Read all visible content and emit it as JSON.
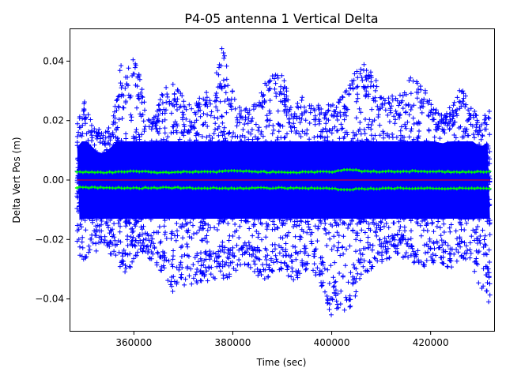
{
  "chart_data": {
    "type": "scatter",
    "title": "P4-05 antenna 1 Vertical Delta",
    "xlabel": "Time (sec)",
    "ylabel": "Delta Vert Pos (m)",
    "xlim": [
      347000,
      433000
    ],
    "ylim": [
      -0.051,
      0.051
    ],
    "x_ticks": [
      360000,
      380000,
      400000,
      420000
    ],
    "x_tick_labels": [
      "360000",
      "380000",
      "400000",
      "420000"
    ],
    "y_ticks": [
      -0.04,
      -0.02,
      0.0,
      0.02,
      0.04
    ],
    "y_tick_labels": [
      "−0.04",
      "−0.02",
      "0.00",
      "0.02",
      "0.04"
    ],
    "grid": false,
    "data_range": [
      348500,
      432000
    ],
    "colors": {
      "points": "#0000ff",
      "sigma_band": "#00ff00",
      "mean_line": "#ff0000"
    },
    "series": [
      {
        "marker": "plus",
        "color": "#0000ff",
        "envelope": {
          "x": [
            348500,
            350000,
            352000,
            354000,
            356000,
            357500,
            358500,
            360000,
            361000,
            362000,
            364000,
            366000,
            368000,
            370000,
            372000,
            374000,
            376000,
            378000,
            380000,
            382000,
            384000,
            386000,
            388000,
            390000,
            392000,
            394000,
            396000,
            398000,
            400000,
            402000,
            404000,
            406000,
            408000,
            410000,
            412000,
            414000,
            416000,
            418000,
            420000,
            422000,
            424000,
            426000,
            428000,
            430000,
            432000
          ],
          "upper": [
            0.02,
            0.028,
            0.018,
            0.016,
            0.022,
            0.043,
            0.036,
            0.042,
            0.038,
            0.028,
            0.022,
            0.032,
            0.034,
            0.028,
            0.024,
            0.03,
            0.032,
            0.046,
            0.03,
            0.024,
            0.026,
            0.032,
            0.038,
            0.036,
            0.024,
            0.028,
            0.026,
            0.026,
            0.026,
            0.028,
            0.034,
            0.04,
            0.04,
            0.028,
            0.028,
            0.03,
            0.035,
            0.034,
            0.026,
            0.022,
            0.024,
            0.032,
            0.026,
            0.02,
            0.024
          ],
          "lower": [
            -0.026,
            -0.028,
            -0.024,
            -0.024,
            -0.026,
            -0.03,
            -0.032,
            -0.028,
            -0.026,
            -0.024,
            -0.028,
            -0.034,
            -0.038,
            -0.036,
            -0.036,
            -0.034,
            -0.034,
            -0.034,
            -0.032,
            -0.028,
            -0.03,
            -0.034,
            -0.032,
            -0.03,
            -0.034,
            -0.032,
            -0.03,
            -0.036,
            -0.046,
            -0.044,
            -0.044,
            -0.034,
            -0.03,
            -0.028,
            -0.026,
            -0.026,
            -0.028,
            -0.03,
            -0.028,
            -0.028,
            -0.03,
            -0.026,
            -0.028,
            -0.036,
            -0.044
          ]
        }
      },
      {
        "marker": "plus",
        "color": "#00ff00",
        "x": [
          348500,
          352000,
          356000,
          360000,
          364000,
          368000,
          372000,
          376000,
          380000,
          384000,
          388000,
          392000,
          396000,
          400000,
          403000,
          406000,
          410000,
          414000,
          418000,
          422000,
          426000,
          430000,
          432000
        ],
        "upper": [
          0.0028,
          0.0025,
          0.0026,
          0.0031,
          0.0025,
          0.0026,
          0.0028,
          0.0027,
          0.0031,
          0.0028,
          0.0027,
          0.0026,
          0.0027,
          0.0028,
          0.0036,
          0.003,
          0.0028,
          0.0029,
          0.003,
          0.0028,
          0.0027,
          0.0028,
          0.0029
        ],
        "lower": [
          -0.0025,
          -0.0025,
          -0.0026,
          -0.0027,
          -0.0026,
          -0.0026,
          -0.0027,
          -0.0027,
          -0.0028,
          -0.0027,
          -0.0027,
          -0.0027,
          -0.0028,
          -0.0029,
          -0.0033,
          -0.0029,
          -0.0028,
          -0.0028,
          -0.0028,
          -0.0028,
          -0.0028,
          -0.0028,
          -0.0028
        ]
      },
      {
        "type": "line",
        "color": "#ff0000",
        "x": [
          348500,
          432000
        ],
        "y": [
          0.0,
          0.0
        ]
      }
    ]
  }
}
